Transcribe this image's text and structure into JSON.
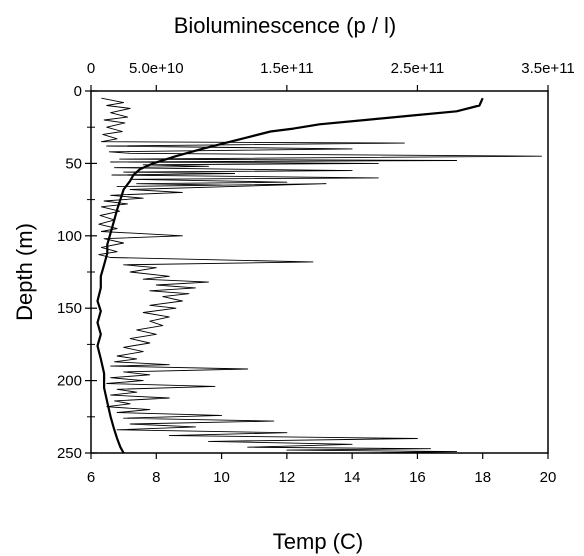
{
  "chart_data": {
    "type": "line",
    "title": "",
    "plot_style": {
      "line_color": "#000000",
      "background": "#ffffff",
      "grid": false,
      "legend": "none"
    },
    "axes": {
      "x_bottom": {
        "label": "Temp (C)",
        "range": [
          6,
          20
        ],
        "ticks": [
          6,
          8,
          10,
          12,
          14,
          16,
          18,
          20
        ],
        "tick_labels": [
          "6",
          "8",
          "10",
          "12",
          "14",
          "16",
          "18",
          "20"
        ]
      },
      "x_top": {
        "label": "Bioluminescence (p / l)",
        "range": [
          0,
          350000000000
        ],
        "ticks": [
          0,
          50000000000,
          150000000000,
          250000000000,
          350000000000
        ],
        "tick_labels": [
          "0",
          "5.0e+10",
          "1.5e+11",
          "2.5e+11",
          "3.5e+11"
        ]
      },
      "y": {
        "label": "Depth (m)",
        "range": [
          0,
          250
        ],
        "inverted": true,
        "ticks": [
          0,
          50,
          100,
          150,
          200,
          250
        ],
        "tick_labels": [
          "0",
          "50",
          "100",
          "150",
          "200",
          "250"
        ]
      }
    },
    "series": [
      {
        "axis": "x_bottom",
        "style": "thick",
        "points": [
          [
            18.0,
            5
          ],
          [
            17.9,
            10
          ],
          [
            17.2,
            14
          ],
          [
            15.8,
            17
          ],
          [
            14.4,
            20
          ],
          [
            13.0,
            23
          ],
          [
            12.2,
            26
          ],
          [
            11.5,
            28
          ],
          [
            10.8,
            32
          ],
          [
            10.1,
            36
          ],
          [
            9.4,
            40
          ],
          [
            8.6,
            45
          ],
          [
            7.9,
            50
          ],
          [
            7.5,
            54
          ],
          [
            7.3,
            58
          ],
          [
            7.2,
            62
          ],
          [
            7.0,
            68
          ],
          [
            6.9,
            75
          ],
          [
            6.8,
            82
          ],
          [
            6.7,
            90
          ],
          [
            6.6,
            98
          ],
          [
            6.5,
            106
          ],
          [
            6.5,
            112
          ],
          [
            6.4,
            120
          ],
          [
            6.3,
            128
          ],
          [
            6.3,
            136
          ],
          [
            6.2,
            145
          ],
          [
            6.3,
            152
          ],
          [
            6.2,
            160
          ],
          [
            6.3,
            168
          ],
          [
            6.2,
            176
          ],
          [
            6.3,
            185
          ],
          [
            6.4,
            195
          ],
          [
            6.4,
            205
          ],
          [
            6.5,
            215
          ],
          [
            6.6,
            225
          ],
          [
            6.7,
            233
          ],
          [
            6.8,
            240
          ],
          [
            6.9,
            246
          ],
          [
            7.0,
            250
          ]
        ]
      },
      {
        "axis": "x_top",
        "style": "thin",
        "points": [
          [
            8000000000,
            5
          ],
          [
            25000000000,
            8
          ],
          [
            12000000000,
            10
          ],
          [
            30000000000,
            12
          ],
          [
            15000000000,
            15
          ],
          [
            28000000000,
            18
          ],
          [
            10000000000,
            20
          ],
          [
            26000000000,
            22
          ],
          [
            12000000000,
            25
          ],
          [
            24000000000,
            28
          ],
          [
            9000000000,
            30
          ],
          [
            20000000000,
            33
          ],
          [
            8000000000,
            35
          ],
          [
            240000000000,
            36
          ],
          [
            12000000000,
            38
          ],
          [
            200000000000,
            40
          ],
          [
            14000000000,
            42
          ],
          [
            30000000000,
            43
          ],
          [
            345000000000,
            45
          ],
          [
            22000000000,
            47
          ],
          [
            280000000000,
            48
          ],
          [
            15000000000,
            49
          ],
          [
            220000000000,
            50
          ],
          [
            40000000000,
            51
          ],
          [
            90000000000,
            52
          ],
          [
            18000000000,
            53
          ],
          [
            200000000000,
            55
          ],
          [
            25000000000,
            56
          ],
          [
            110000000000,
            57
          ],
          [
            16000000000,
            58
          ],
          [
            220000000000,
            60
          ],
          [
            30000000000,
            61
          ],
          [
            150000000000,
            63
          ],
          [
            35000000000,
            64
          ],
          [
            100000000000,
            65
          ],
          [
            20000000000,
            66
          ],
          [
            180000000000,
            64
          ],
          [
            30000000000,
            68
          ],
          [
            70000000000,
            70
          ],
          [
            15000000000,
            72
          ],
          [
            40000000000,
            74
          ],
          [
            10000000000,
            76
          ],
          [
            28000000000,
            78
          ],
          [
            8000000000,
            80
          ],
          [
            22000000000,
            83
          ],
          [
            7000000000,
            86
          ],
          [
            18000000000,
            89
          ],
          [
            6000000000,
            92
          ],
          [
            20000000000,
            95
          ],
          [
            8000000000,
            97
          ],
          [
            70000000000,
            100
          ],
          [
            10000000000,
            102
          ],
          [
            25000000000,
            105
          ],
          [
            8000000000,
            108
          ],
          [
            20000000000,
            111
          ],
          [
            6000000000,
            113
          ],
          [
            15000000000,
            115
          ],
          [
            170000000000,
            118
          ],
          [
            25000000000,
            120
          ],
          [
            50000000000,
            122
          ],
          [
            30000000000,
            125
          ],
          [
            60000000000,
            128
          ],
          [
            40000000000,
            130
          ],
          [
            90000000000,
            132
          ],
          [
            50000000000,
            134
          ],
          [
            80000000000,
            136
          ],
          [
            45000000000,
            138
          ],
          [
            75000000000,
            140
          ],
          [
            55000000000,
            142
          ],
          [
            70000000000,
            145
          ],
          [
            45000000000,
            148
          ],
          [
            65000000000,
            150
          ],
          [
            40000000000,
            153
          ],
          [
            60000000000,
            156
          ],
          [
            45000000000,
            159
          ],
          [
            55000000000,
            162
          ],
          [
            35000000000,
            165
          ],
          [
            50000000000,
            168
          ],
          [
            30000000000,
            171
          ],
          [
            45000000000,
            174
          ],
          [
            25000000000,
            177
          ],
          [
            40000000000,
            180
          ],
          [
            20000000000,
            183
          ],
          [
            35000000000,
            185
          ],
          [
            18000000000,
            187
          ],
          [
            60000000000,
            189
          ],
          [
            15000000000,
            190
          ],
          [
            120000000000,
            192
          ],
          [
            25000000000,
            194
          ],
          [
            45000000000,
            196
          ],
          [
            15000000000,
            198
          ],
          [
            40000000000,
            200
          ],
          [
            12000000000,
            202
          ],
          [
            95000000000,
            204
          ],
          [
            20000000000,
            206
          ],
          [
            35000000000,
            208
          ],
          [
            15000000000,
            210
          ],
          [
            60000000000,
            212
          ],
          [
            18000000000,
            214
          ],
          [
            30000000000,
            216
          ],
          [
            12000000000,
            218
          ],
          [
            45000000000,
            220
          ],
          [
            20000000000,
            222
          ],
          [
            100000000000,
            224
          ],
          [
            25000000000,
            226
          ],
          [
            140000000000,
            228
          ],
          [
            30000000000,
            230
          ],
          [
            80000000000,
            232
          ],
          [
            20000000000,
            234
          ],
          [
            150000000000,
            236
          ],
          [
            60000000000,
            238
          ],
          [
            250000000000,
            240
          ],
          [
            90000000000,
            242
          ],
          [
            200000000000,
            244
          ],
          [
            120000000000,
            246
          ],
          [
            260000000000,
            247
          ],
          [
            150000000000,
            248
          ],
          [
            280000000000,
            249
          ],
          [
            210000000000,
            250
          ]
        ]
      }
    ]
  }
}
